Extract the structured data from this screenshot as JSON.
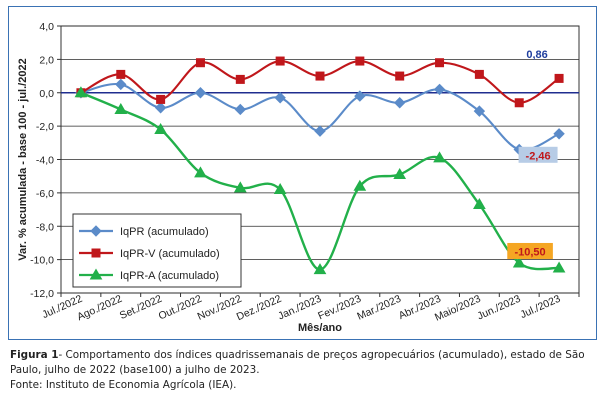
{
  "chart_data": {
    "type": "line",
    "xlabel": "Mês/ano",
    "ylabel": "Var. % acumulada - base 100 - jul./2022",
    "ylim": [
      -12,
      4
    ],
    "yticks": [
      "4,0",
      "2,0",
      "0,0",
      "-2,0",
      "-4,0",
      "-6,0",
      "-8,0",
      "-10,0",
      "-12,0"
    ],
    "ytick_values": [
      4,
      2,
      0,
      -2,
      -4,
      -6,
      -8,
      -10,
      -12
    ],
    "categories": [
      "Jul./2022",
      "Ago./2022",
      "Set./2022",
      "Out./2022",
      "Nov./2022",
      "Dez./2022",
      "Jan./2023",
      "Fev./2023",
      "Mar./2023",
      "Abr./2023",
      "Maio/2023",
      "Jun./2023",
      "Jul./2023"
    ],
    "grid": true,
    "legend_position": "bottom-left",
    "series": [
      {
        "name": "IqPR (acumulado)",
        "color": "#5b8bc9",
        "marker": "diamond",
        "values": [
          0,
          0.5,
          -0.9,
          0.0,
          -1.0,
          -0.3,
          -2.3,
          -0.2,
          -0.6,
          0.2,
          -1.1,
          -3.4,
          -2.46
        ]
      },
      {
        "name": "IqPR-V  (acumulado)",
        "color": "#c0171b",
        "marker": "square",
        "values": [
          0,
          1.1,
          -0.4,
          1.8,
          0.8,
          1.9,
          1.0,
          1.9,
          1.0,
          1.8,
          1.1,
          -0.6,
          0.86
        ]
      },
      {
        "name": "IqPR-A  (acumulado)",
        "color": "#22b04a",
        "marker": "triangle",
        "values": [
          0,
          -1.0,
          -2.2,
          -4.8,
          -5.7,
          -5.8,
          -10.6,
          -5.6,
          -4.9,
          -3.9,
          -6.7,
          -10.2,
          -10.5
        ]
      }
    ],
    "annotations": [
      {
        "text": "0,86",
        "series": 1,
        "color": "#1f3e9e",
        "background": "none"
      },
      {
        "text": "-2,46",
        "series": 0,
        "color": "#c0171b",
        "background": "#b7cce6"
      },
      {
        "text": "-10,50",
        "series": 2,
        "color": "#c0171b",
        "background": "#f5a623"
      }
    ]
  },
  "caption": {
    "label": "Figura 1",
    "text": "- Comportamento dos índices quadrissemanais de preços agropecuários (acumulado), estado de São Paulo, julho de 2022 (base100) a julho de 2023.",
    "source": "Fonte: Instituto de Economia Agrícola (IEA)."
  }
}
